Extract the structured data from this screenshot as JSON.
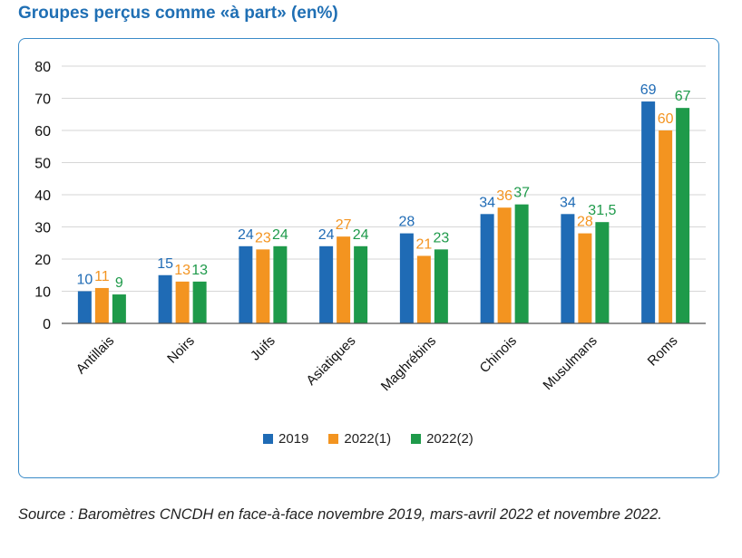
{
  "figure_title": "Groupes perçus comme «à part» (en%)",
  "source": "Source : Baromètres CNCDH en face-à-face novembre 2019, mars-avril 2022 et novembre 2022.",
  "chart_data": {
    "type": "bar",
    "title": "Groupes perçus comme «à part» (en%)",
    "xlabel": "",
    "ylabel": "",
    "ylim": [
      0,
      80
    ],
    "yticks": [
      "0",
      "10",
      "20",
      "30",
      "40",
      "50",
      "60",
      "70",
      "80"
    ],
    "grid": true,
    "legend_position": "bottom",
    "categories": [
      "Antillais",
      "Noirs",
      "Juifs",
      "Asiatiques",
      "Maghrébins",
      "Chinois",
      "Musulmans",
      "Roms"
    ],
    "series": [
      {
        "name": "2019",
        "color": "#1f6bb5",
        "values": [
          10,
          15,
          24,
          24,
          28,
          34,
          34,
          69
        ],
        "labels": [
          "10",
          "15",
          "24",
          "24",
          "28",
          "34",
          "34",
          "69"
        ]
      },
      {
        "name": "2022(1)",
        "color": "#f39420",
        "values": [
          11,
          13,
          23,
          27,
          21,
          36,
          28,
          60
        ],
        "labels": [
          "11",
          "13",
          "23",
          "27",
          "21",
          "36",
          "28",
          "60"
        ]
      },
      {
        "name": "2022(2)",
        "color": "#1e9a4a",
        "values": [
          9,
          13,
          24,
          24,
          23,
          37,
          31.5,
          67
        ],
        "labels": [
          "9",
          "13",
          "24",
          "24",
          "23",
          "37",
          "31,5",
          "67"
        ]
      }
    ]
  }
}
